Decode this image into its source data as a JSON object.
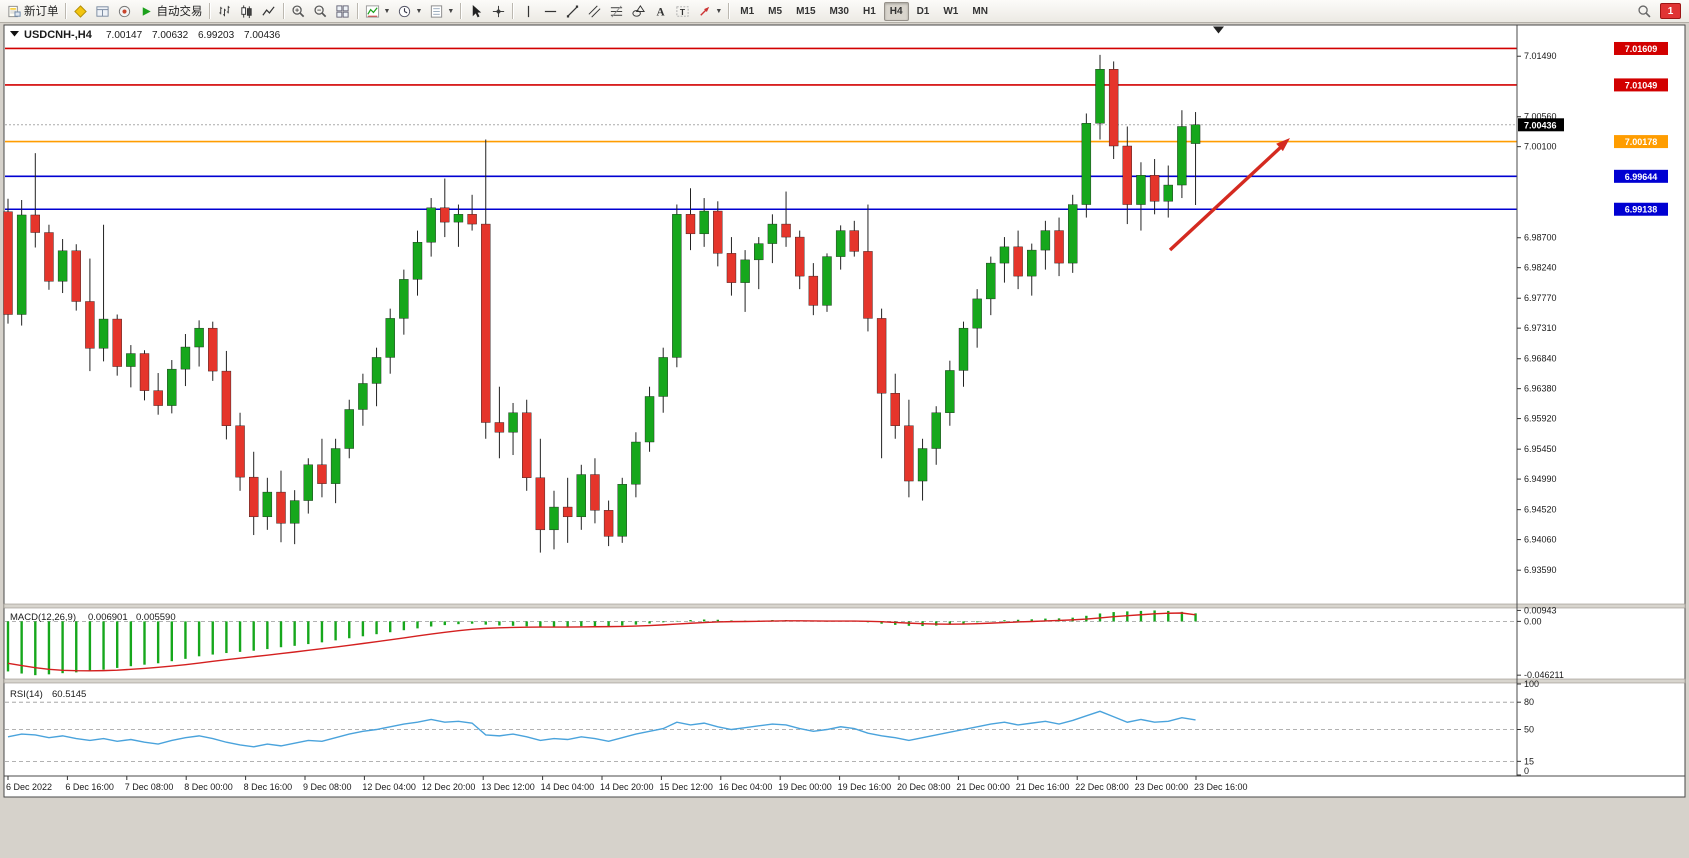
{
  "toolbar": {
    "items": [
      {
        "name": "new-order-button",
        "icon": "order-icon",
        "label": "新订单"
      },
      {
        "type": "sep"
      },
      {
        "name": "metaeditor-button",
        "icon": "editor-icon"
      },
      {
        "name": "market-watch-button",
        "icon": "market-icon"
      },
      {
        "name": "navigator-button",
        "icon": "navigator-icon"
      },
      {
        "name": "autotrading-button",
        "icon": "play-icon",
        "label": "自动交易"
      },
      {
        "type": "sep"
      },
      {
        "name": "bar-chart-button",
        "icon": "bars-icon"
      },
      {
        "name": "candlestick-chart-button",
        "icon": "candles-icon"
      },
      {
        "name": "line-chart-button",
        "icon": "linechart-icon"
      },
      {
        "type": "sep"
      },
      {
        "name": "zoom-in-button",
        "icon": "zoom-in-icon"
      },
      {
        "name": "zoom-out-button",
        "icon": "zoom-out-icon"
      },
      {
        "name": "tile-windows-button",
        "icon": "tile-icon"
      },
      {
        "type": "sep"
      },
      {
        "name": "indicators-button",
        "icon": "indicators-icon",
        "caret": true
      },
      {
        "name": "periods-button",
        "icon": "clock-icon",
        "caret": true
      },
      {
        "name": "templates-button",
        "icon": "template-icon",
        "caret": true
      },
      {
        "type": "sep"
      },
      {
        "name": "cursor-button",
        "icon": "cursor-icon"
      },
      {
        "name": "crosshair-button",
        "icon": "crosshair-icon"
      },
      {
        "type": "sep"
      },
      {
        "name": "vertical-line-button",
        "icon": "vline-icon"
      },
      {
        "name": "horizontal-line-button",
        "icon": "hline-icon"
      },
      {
        "name": "trendline-button",
        "icon": "trendline-icon"
      },
      {
        "name": "channel-button",
        "icon": "channel-icon"
      },
      {
        "name": "fibonacci-button",
        "icon": "fibo-icon"
      },
      {
        "name": "shapes-button",
        "icon": "shapes-icon"
      },
      {
        "name": "text-button",
        "icon": "text-icon"
      },
      {
        "name": "text-label-button",
        "icon": "label-icon"
      },
      {
        "name": "arrows-button",
        "icon": "arrowsym-icon",
        "caret": true
      },
      {
        "type": "sep"
      }
    ],
    "timeframes": [
      {
        "label": "M1"
      },
      {
        "label": "M5"
      },
      {
        "label": "M15"
      },
      {
        "label": "M30"
      },
      {
        "label": "H1"
      },
      {
        "label": "H4",
        "active": true
      },
      {
        "label": "D1"
      },
      {
        "label": "W1"
      },
      {
        "label": "MN"
      }
    ],
    "notification_count": "1"
  },
  "chart": {
    "title": {
      "symbol": "USDCNH-,H4",
      "open": "7.00147",
      "high": "7.00632",
      "low": "6.99203",
      "close": "7.00436"
    },
    "colors": {
      "up": "#16a71c",
      "down": "#e5352b",
      "wick": "#222222",
      "macd_hist": "#16a71c",
      "macd_signal": "#d42020",
      "rsi_line": "#4aa3dc",
      "current_tag_bg": "#000000"
    }
  },
  "macd": {
    "label": "MACD(12,26,9)",
    "value_main": "0.006901",
    "value_signal": "0.005590"
  },
  "rsi": {
    "label": "RSI(14)",
    "value": "60.5145"
  },
  "chart_data": {
    "type": "candlestick",
    "symbol": "USDCNH-",
    "timeframe": "H4",
    "ylim": [
      6.9307,
      7.0197
    ],
    "y_tick_labels": [
      "7.01490",
      "7.00560",
      "7.00100",
      "6.98700",
      "6.98240",
      "6.97770",
      "6.97310",
      "6.96840",
      "6.96380",
      "6.95920",
      "6.95450",
      "6.94990",
      "6.94520",
      "6.94060",
      "6.93590"
    ],
    "x_labels": [
      "6 Dec 2022",
      "6 Dec 16:00",
      "7 Dec 08:00",
      "8 Dec 00:00",
      "8 Dec 16:00",
      "9 Dec 08:00",
      "12 Dec 04:00",
      "12 Dec 20:00",
      "13 Dec 12:00",
      "14 Dec 04:00",
      "14 Dec 20:00",
      "15 Dec 12:00",
      "16 Dec 04:00",
      "19 Dec 00:00",
      "19 Dec 16:00",
      "20 Dec 08:00",
      "21 Dec 00:00",
      "21 Dec 16:00",
      "22 Dec 08:00",
      "23 Dec 00:00",
      "23 Dec 16:00"
    ],
    "current_price": "7.00436",
    "hlines": [
      {
        "label": "7.01609",
        "color": "#d20000"
      },
      {
        "label": "7.01049",
        "color": "#d20000"
      },
      {
        "label": "7.00178",
        "color": "#ff9d00"
      },
      {
        "label": "6.99644",
        "color": "#0000d2"
      },
      {
        "label": "6.99138",
        "color": "#0000d2"
      }
    ],
    "ohlc": [
      [
        6.991,
        6.993,
        6.9738,
        6.9752
      ],
      [
        6.9752,
        6.9928,
        6.9735,
        6.9905
      ],
      [
        6.9905,
        7.0,
        6.9855,
        6.9878
      ],
      [
        6.9878,
        6.989,
        6.979,
        6.9803
      ],
      [
        6.9803,
        6.9868,
        6.9785,
        6.985
      ],
      [
        6.985,
        6.986,
        6.9758,
        6.9772
      ],
      [
        6.9772,
        6.9838,
        6.9665,
        6.97
      ],
      [
        6.97,
        6.989,
        6.968,
        6.9745
      ],
      [
        6.9745,
        6.9752,
        6.9658,
        6.9672
      ],
      [
        6.9672,
        6.9705,
        6.964,
        6.9692
      ],
      [
        6.9692,
        6.9697,
        6.962,
        6.9635
      ],
      [
        6.9635,
        6.9662,
        6.9598,
        6.9612
      ],
      [
        6.9612,
        6.9682,
        6.96,
        6.9668
      ],
      [
        6.9668,
        6.9722,
        6.9642,
        6.9702
      ],
      [
        6.9702,
        6.9743,
        6.9672,
        6.9731
      ],
      [
        6.9731,
        6.9741,
        6.965,
        6.9665
      ],
      [
        6.9665,
        6.9696,
        6.956,
        6.9581
      ],
      [
        6.9581,
        6.9601,
        6.9481,
        6.9502
      ],
      [
        6.9502,
        6.9541,
        6.9413,
        6.9441
      ],
      [
        6.9441,
        6.9501,
        6.9421,
        6.9479
      ],
      [
        6.9479,
        6.9512,
        6.9402,
        6.9431
      ],
      [
        6.9431,
        6.9482,
        6.9399,
        6.9466
      ],
      [
        6.9466,
        6.9531,
        6.9446,
        6.9521
      ],
      [
        6.9521,
        6.9561,
        6.9471,
        6.9492
      ],
      [
        6.9492,
        6.9561,
        6.9462,
        6.9546
      ],
      [
        6.9546,
        6.9621,
        6.9531,
        6.9606
      ],
      [
        6.9606,
        6.9661,
        6.9581,
        6.9646
      ],
      [
        6.9646,
        6.9701,
        6.9611,
        6.9686
      ],
      [
        6.9686,
        6.9761,
        6.9661,
        6.9746
      ],
      [
        6.9746,
        6.9821,
        6.9721,
        6.9806
      ],
      [
        6.9806,
        6.9881,
        6.9781,
        6.9863
      ],
      [
        6.9863,
        6.9931,
        6.9841,
        6.9916
      ],
      [
        6.9916,
        6.9961,
        6.9871,
        6.9894
      ],
      [
        6.9894,
        6.9921,
        6.9856,
        6.9906
      ],
      [
        6.9906,
        6.9936,
        6.9881,
        6.9891
      ],
      [
        6.9891,
        7.0021,
        6.9561,
        6.9586
      ],
      [
        6.9586,
        6.9641,
        6.9531,
        6.9571
      ],
      [
        6.9571,
        6.9616,
        6.9536,
        6.9601
      ],
      [
        6.9601,
        6.9621,
        6.9481,
        6.9501
      ],
      [
        6.9501,
        6.9561,
        6.9386,
        6.9421
      ],
      [
        6.9421,
        6.9481,
        6.9391,
        6.9456
      ],
      [
        6.9456,
        6.9501,
        6.9401,
        6.9441
      ],
      [
        6.9441,
        6.9521,
        6.9421,
        6.9506
      ],
      [
        6.9506,
        6.9531,
        6.9431,
        6.9451
      ],
      [
        6.9451,
        6.9466,
        6.9396,
        6.9411
      ],
      [
        6.9411,
        6.9501,
        6.9401,
        6.9491
      ],
      [
        6.9491,
        6.9571,
        6.9471,
        6.9556
      ],
      [
        6.9556,
        6.9641,
        6.9541,
        6.9626
      ],
      [
        6.9626,
        6.9701,
        6.9601,
        6.9686
      ],
      [
        6.9686,
        6.9921,
        6.9671,
        6.9906
      ],
      [
        6.9906,
        6.9946,
        6.9851,
        6.9876
      ],
      [
        6.9876,
        6.9931,
        6.9856,
        6.9911
      ],
      [
        6.9911,
        6.9926,
        6.9826,
        6.9846
      ],
      [
        6.9846,
        6.9871,
        6.9781,
        6.9801
      ],
      [
        6.9801,
        6.9851,
        6.9756,
        6.9836
      ],
      [
        6.9836,
        6.9871,
        6.9791,
        6.9861
      ],
      [
        6.9861,
        6.9906,
        6.9831,
        6.9891
      ],
      [
        6.9891,
        6.9941,
        6.9856,
        6.9871
      ],
      [
        6.9871,
        6.9881,
        6.9791,
        6.9811
      ],
      [
        6.9811,
        6.9831,
        6.9751,
        6.9766
      ],
      [
        6.9766,
        6.9846,
        6.9756,
        6.9841
      ],
      [
        6.9841,
        6.9889,
        6.9821,
        6.9881
      ],
      [
        6.9881,
        6.9896,
        6.9841,
        6.9849
      ],
      [
        6.9849,
        6.9921,
        6.9726,
        6.9746
      ],
      [
        6.9746,
        6.9761,
        6.9531,
        6.9631
      ],
      [
        6.9631,
        6.9661,
        6.9561,
        6.9581
      ],
      [
        6.9581,
        6.9621,
        6.9471,
        6.9496
      ],
      [
        6.9496,
        6.9561,
        6.9466,
        6.9546
      ],
      [
        6.9546,
        6.9611,
        6.9521,
        6.9601
      ],
      [
        6.9601,
        6.9681,
        6.9581,
        6.9666
      ],
      [
        6.9666,
        6.9741,
        6.9641,
        6.9731
      ],
      [
        6.9731,
        6.9791,
        6.9701,
        6.9776
      ],
      [
        6.9776,
        6.9841,
        6.9751,
        6.9831
      ],
      [
        6.9831,
        6.9871,
        6.9801,
        6.9856
      ],
      [
        6.9856,
        6.9881,
        6.9791,
        6.9811
      ],
      [
        6.9811,
        6.9861,
        6.9781,
        6.9851
      ],
      [
        6.9851,
        6.9896,
        6.9821,
        6.9881
      ],
      [
        6.9881,
        6.9901,
        6.9811,
        6.9831
      ],
      [
        6.9831,
        6.9936,
        6.9816,
        6.9921
      ],
      [
        6.9921,
        7.0061,
        6.9901,
        7.0046
      ],
      [
        7.0046,
        7.0151,
        7.0021,
        7.0129
      ],
      [
        7.0129,
        7.0141,
        6.9991,
        7.0011
      ],
      [
        7.0011,
        7.0041,
        6.9891,
        6.9921
      ],
      [
        6.9921,
        6.9986,
        6.9881,
        6.9966
      ],
      [
        6.9966,
        6.9991,
        6.9906,
        6.9926
      ],
      [
        6.9926,
        6.9981,
        6.9901,
        6.9951
      ],
      [
        6.9951,
        7.0066,
        6.9931,
        7.0041
      ],
      [
        7.00147,
        7.00632,
        6.99203,
        7.00436
      ]
    ],
    "indicators": {
      "macd": {
        "hist": [
          -0.043,
          -0.0448,
          -0.0462,
          -0.0455,
          -0.0445,
          -0.0438,
          -0.0428,
          -0.0415,
          -0.04,
          -0.0385,
          -0.0372,
          -0.036,
          -0.0342,
          -0.0322,
          -0.03,
          -0.0285,
          -0.0272,
          -0.0262,
          -0.0252,
          -0.0238,
          -0.0222,
          -0.021,
          -0.0195,
          -0.018,
          -0.0163,
          -0.0145,
          -0.0128,
          -0.011,
          -0.0093,
          -0.0076,
          -0.006,
          -0.0044,
          -0.0032,
          -0.0024,
          -0.002,
          -0.0028,
          -0.0035,
          -0.0038,
          -0.0042,
          -0.0048,
          -0.005,
          -0.0048,
          -0.0042,
          -0.004,
          -0.0042,
          -0.0036,
          -0.0028,
          -0.0018,
          -0.0008,
          0.0004,
          0.0012,
          0.0016,
          0.0014,
          0.0008,
          0.0006,
          0.0008,
          0.0012,
          0.0012,
          0.0006,
          0.0,
          -0.0002,
          0.0002,
          0.0002,
          -0.0008,
          -0.002,
          -0.003,
          -0.0038,
          -0.004,
          -0.0036,
          -0.0028,
          -0.0018,
          -0.0008,
          0.0002,
          0.001,
          0.0014,
          0.0018,
          0.0024,
          0.0026,
          0.0032,
          0.0048,
          0.0068,
          0.008,
          0.0086,
          0.009,
          0.0094,
          0.009,
          0.0082,
          0.0069
        ],
        "signal": [
          -0.036,
          -0.038,
          -0.0398,
          -0.0412,
          -0.042,
          -0.0424,
          -0.0425,
          -0.0423,
          -0.0419,
          -0.0412,
          -0.0404,
          -0.0395,
          -0.0384,
          -0.0372,
          -0.0358,
          -0.0343,
          -0.0329,
          -0.0316,
          -0.0303,
          -0.029,
          -0.0276,
          -0.0263,
          -0.0249,
          -0.0235,
          -0.0221,
          -0.0206,
          -0.019,
          -0.0174,
          -0.0158,
          -0.0142,
          -0.0125,
          -0.0109,
          -0.0094,
          -0.008,
          -0.0068,
          -0.006,
          -0.0055,
          -0.0052,
          -0.005,
          -0.0049,
          -0.0049,
          -0.0049,
          -0.0048,
          -0.0046,
          -0.0045,
          -0.0043,
          -0.004,
          -0.0036,
          -0.003,
          -0.0023,
          -0.0016,
          -0.001,
          -0.0005,
          -0.0002,
          -0.0001,
          0.0001,
          0.0003,
          0.0005,
          0.0005,
          0.0004,
          0.0003,
          0.0003,
          0.0003,
          0.0001,
          -0.0003,
          -0.0009,
          -0.0015,
          -0.002,
          -0.0023,
          -0.0024,
          -0.0023,
          -0.002,
          -0.0015,
          -0.001,
          -0.0005,
          -0.0001,
          0.0004,
          0.0008,
          0.0013,
          0.002,
          0.003,
          0.004,
          0.0049,
          0.0057,
          0.0065,
          0.007,
          0.0072,
          0.0056
        ],
        "scale_labels": [
          "0.00943",
          "0.00",
          "-0.046211"
        ],
        "ylim": [
          -0.0495,
          0.0115
        ]
      },
      "rsi": {
        "values": [
          42,
          45,
          44,
          41,
          43,
          40,
          38,
          40,
          37,
          39,
          36,
          34,
          38,
          41,
          43,
          40,
          36,
          33,
          31,
          34,
          32,
          35,
          38,
          37,
          41,
          45,
          48,
          50,
          53,
          56,
          58,
          61,
          58,
          59,
          57,
          44,
          43,
          45,
          42,
          38,
          40,
          39,
          42,
          40,
          37,
          41,
          45,
          48,
          51,
          58,
          55,
          57,
          53,
          50,
          52,
          54,
          56,
          55,
          51,
          48,
          50,
          53,
          51,
          46,
          43,
          41,
          38,
          41,
          44,
          47,
          50,
          53,
          56,
          58,
          55,
          57,
          59,
          56,
          60,
          65,
          70,
          64,
          58,
          61,
          58,
          59,
          63,
          60.5
        ],
        "levels": [
          80,
          50,
          15
        ],
        "scale_labels": [
          "100",
          "80",
          "50",
          "15",
          "0"
        ],
        "ylim": [
          0,
          100
        ]
      }
    },
    "annotation": {
      "type": "arrow",
      "color": "#d42a20"
    }
  }
}
